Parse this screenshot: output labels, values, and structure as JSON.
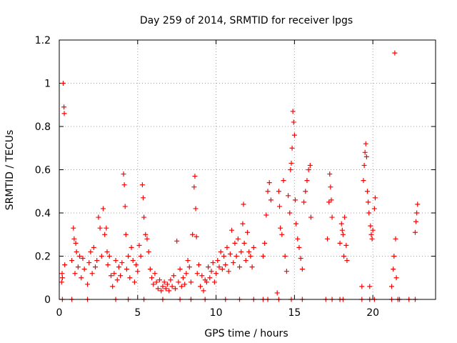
{
  "chart_data": {
    "type": "scatter",
    "title": "Day 259 of 2014, SRMTID for receiver lpgs",
    "xlabel": "GPS time / hours",
    "ylabel": "SRMTID / TECUs",
    "xlim": [
      0,
      24
    ],
    "ylim": [
      0,
      1.2
    ],
    "grid": true,
    "marker": "+",
    "color": "#ff0000",
    "xticks": [
      0,
      5,
      10,
      15,
      20
    ],
    "xtick_labels": [
      "0",
      "5",
      "10",
      "15",
      "20"
    ],
    "yticks": [
      0,
      0.2,
      0.4,
      0.6,
      0.8,
      1.0,
      1.2
    ],
    "ytick_labels": [
      "0",
      "0.2",
      "0.4",
      "0.6",
      "0.8",
      "1",
      "1.2"
    ],
    "series": [
      {
        "name": "SRMTID",
        "points": [
          [
            0.15,
            0.08
          ],
          [
            0.18,
            0.12
          ],
          [
            0.2,
            0.1
          ],
          [
            0.25,
            1.0
          ],
          [
            0.3,
            0.89
          ],
          [
            0.32,
            0.86
          ],
          [
            0.35,
            0.16
          ],
          [
            0.8,
            0.18
          ],
          [
            0.9,
            0.33
          ],
          [
            0.95,
            0.28
          ],
          [
            1.0,
            0.12
          ],
          [
            1.05,
            0.26
          ],
          [
            1.1,
            0.22
          ],
          [
            1.2,
            0.15
          ],
          [
            1.3,
            0.2
          ],
          [
            1.4,
            0.1
          ],
          [
            1.5,
            0.19
          ],
          [
            1.6,
            0.14
          ],
          [
            1.8,
            0.07
          ],
          [
            1.9,
            0.17
          ],
          [
            2.0,
            0.22
          ],
          [
            2.1,
            0.12
          ],
          [
            2.2,
            0.24
          ],
          [
            2.3,
            0.15
          ],
          [
            2.4,
            0.18
          ],
          [
            2.5,
            0.38
          ],
          [
            2.6,
            0.33
          ],
          [
            2.7,
            0.2
          ],
          [
            2.8,
            0.42
          ],
          [
            2.9,
            0.3
          ],
          [
            3.0,
            0.33
          ],
          [
            3.05,
            0.22
          ],
          [
            3.1,
            0.16
          ],
          [
            3.2,
            0.2
          ],
          [
            3.3,
            0.11
          ],
          [
            3.4,
            0.06
          ],
          [
            3.5,
            0.12
          ],
          [
            3.6,
            0.18
          ],
          [
            3.7,
            0.09
          ],
          [
            3.8,
            0.15
          ],
          [
            3.9,
            0.11
          ],
          [
            4.0,
            0.17
          ],
          [
            4.1,
            0.58
          ],
          [
            4.15,
            0.53
          ],
          [
            4.2,
            0.43
          ],
          [
            4.25,
            0.3
          ],
          [
            4.3,
            0.14
          ],
          [
            4.4,
            0.2
          ],
          [
            4.5,
            0.1
          ],
          [
            4.6,
            0.24
          ],
          [
            4.7,
            0.18
          ],
          [
            4.8,
            0.08
          ],
          [
            4.9,
            0.16
          ],
          [
            5.0,
            0.13
          ],
          [
            5.1,
            0.25
          ],
          [
            5.2,
            0.2
          ],
          [
            5.3,
            0.53
          ],
          [
            5.35,
            0.47
          ],
          [
            5.4,
            0.38
          ],
          [
            5.5,
            0.3
          ],
          [
            5.6,
            0.28
          ],
          [
            5.7,
            0.22
          ],
          [
            5.8,
            0.14
          ],
          [
            5.9,
            0.1
          ],
          [
            6.0,
            0.07
          ],
          [
            6.1,
            0.12
          ],
          [
            6.2,
            0.08
          ],
          [
            6.3,
            0.05
          ],
          [
            6.4,
            0.09
          ],
          [
            6.5,
            0.04
          ],
          [
            6.6,
            0.06
          ],
          [
            6.7,
            0.08
          ],
          [
            6.8,
            0.05
          ],
          [
            6.9,
            0.07
          ],
          [
            7.0,
            0.04
          ],
          [
            7.1,
            0.09
          ],
          [
            7.2,
            0.06
          ],
          [
            7.3,
            0.11
          ],
          [
            7.4,
            0.05
          ],
          [
            7.5,
            0.27
          ],
          [
            7.6,
            0.08
          ],
          [
            7.7,
            0.14
          ],
          [
            7.8,
            0.06
          ],
          [
            7.9,
            0.1
          ],
          [
            8.0,
            0.07
          ],
          [
            8.1,
            0.12
          ],
          [
            8.2,
            0.18
          ],
          [
            8.3,
            0.15
          ],
          [
            8.4,
            0.08
          ],
          [
            8.5,
            0.3
          ],
          [
            8.6,
            0.52
          ],
          [
            8.65,
            0.57
          ],
          [
            8.7,
            0.42
          ],
          [
            8.75,
            0.29
          ],
          [
            8.8,
            0.12
          ],
          [
            8.9,
            0.16
          ],
          [
            9.0,
            0.06
          ],
          [
            9.1,
            0.11
          ],
          [
            9.2,
            0.04
          ],
          [
            9.3,
            0.09
          ],
          [
            9.4,
            0.08
          ],
          [
            9.5,
            0.15
          ],
          [
            9.6,
            0.1
          ],
          [
            9.7,
            0.13
          ],
          [
            9.8,
            0.17
          ],
          [
            9.9,
            0.08
          ],
          [
            10.0,
            0.12
          ],
          [
            10.1,
            0.18
          ],
          [
            10.2,
            0.15
          ],
          [
            10.3,
            0.22
          ],
          [
            10.4,
            0.14
          ],
          [
            10.5,
            0.2
          ],
          [
            10.6,
            0.16
          ],
          [
            10.7,
            0.24
          ],
          [
            10.8,
            0.13
          ],
          [
            10.9,
            0.21
          ],
          [
            11.0,
            0.32
          ],
          [
            11.1,
            0.17
          ],
          [
            11.2,
            0.26
          ],
          [
            11.3,
            0.2
          ],
          [
            11.4,
            0.28
          ],
          [
            11.5,
            0.15
          ],
          [
            11.6,
            0.22
          ],
          [
            11.7,
            0.35
          ],
          [
            11.75,
            0.44
          ],
          [
            11.8,
            0.26
          ],
          [
            11.9,
            0.18
          ],
          [
            12.0,
            0.31
          ],
          [
            12.1,
            0.22
          ],
          [
            12.2,
            0.2
          ],
          [
            12.3,
            0.15
          ],
          [
            12.4,
            0.24
          ],
          [
            13.0,
            0.2
          ],
          [
            13.1,
            0.26
          ],
          [
            13.2,
            0.39
          ],
          [
            13.3,
            0.5
          ],
          [
            13.4,
            0.54
          ],
          [
            13.5,
            0.46
          ],
          [
            13.9,
            0.03
          ],
          [
            14.0,
            0.5
          ],
          [
            14.05,
            0.43
          ],
          [
            14.1,
            0.33
          ],
          [
            14.2,
            0.3
          ],
          [
            14.3,
            0.55
          ],
          [
            14.4,
            0.2
          ],
          [
            14.5,
            0.13
          ],
          [
            14.6,
            0.48
          ],
          [
            14.7,
            0.4
          ],
          [
            14.75,
            0.6
          ],
          [
            14.8,
            0.63
          ],
          [
            14.85,
            0.7
          ],
          [
            14.9,
            0.87
          ],
          [
            14.95,
            0.82
          ],
          [
            15.0,
            0.76
          ],
          [
            15.05,
            0.46
          ],
          [
            15.1,
            0.35
          ],
          [
            15.2,
            0.28
          ],
          [
            15.3,
            0.24
          ],
          [
            15.4,
            0.19
          ],
          [
            15.5,
            0.14
          ],
          [
            15.6,
            0.45
          ],
          [
            15.7,
            0.5
          ],
          [
            15.8,
            0.55
          ],
          [
            15.9,
            0.6
          ],
          [
            16.0,
            0.62
          ],
          [
            16.05,
            0.38
          ],
          [
            17.1,
            0.28
          ],
          [
            17.2,
            0.45
          ],
          [
            17.25,
            0.58
          ],
          [
            17.3,
            0.52
          ],
          [
            17.35,
            0.46
          ],
          [
            17.4,
            0.38
          ],
          [
            17.9,
            0.26
          ],
          [
            18.0,
            0.35
          ],
          [
            18.05,
            0.32
          ],
          [
            18.1,
            0.3
          ],
          [
            18.15,
            0.2
          ],
          [
            18.2,
            0.38
          ],
          [
            18.3,
            0.25
          ],
          [
            18.35,
            0.18
          ],
          [
            19.3,
            0.06
          ],
          [
            19.4,
            0.55
          ],
          [
            19.45,
            0.62
          ],
          [
            19.5,
            0.68
          ],
          [
            19.55,
            0.72
          ],
          [
            19.6,
            0.66
          ],
          [
            19.65,
            0.5
          ],
          [
            19.7,
            0.45
          ],
          [
            19.75,
            0.4
          ],
          [
            19.8,
            0.06
          ],
          [
            19.85,
            0.34
          ],
          [
            19.9,
            0.3
          ],
          [
            19.95,
            0.28
          ],
          [
            20.0,
            0.32
          ],
          [
            20.1,
            0.42
          ],
          [
            20.15,
            0.47
          ],
          [
            21.2,
            0.06
          ],
          [
            21.3,
            0.14
          ],
          [
            21.35,
            0.2
          ],
          [
            21.4,
            1.14
          ],
          [
            21.45,
            0.28
          ],
          [
            21.5,
            0.1
          ],
          [
            22.7,
            0.31
          ],
          [
            22.75,
            0.36
          ],
          [
            22.8,
            0.4
          ],
          [
            22.85,
            0.44
          ]
        ]
      }
    ],
    "zero_points_x": [
      0.2,
      0.8,
      1.8,
      3.6,
      4.4,
      5.4,
      6.6,
      7.7,
      8.4,
      9.3,
      10.6,
      11.5,
      12.4,
      13.0,
      13.3,
      14.0,
      14.8,
      15.5,
      17.0,
      17.4,
      17.9,
      18.1,
      19.3,
      19.8,
      20.1,
      21.2,
      21.6,
      21.7,
      22.3,
      22.7
    ]
  }
}
